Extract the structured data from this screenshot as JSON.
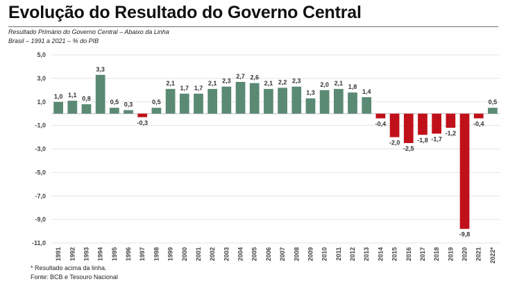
{
  "header": {
    "title": "Evolução do Resultado do Governo Central",
    "subtitle": "Resultado Primário do Governo Central – Abaixo da Linha",
    "subtitle2": "Brasil – 1991 a 2021 – % do PIB"
  },
  "footer": {
    "note": "* Resultado acima da linha.",
    "source": "Fonte: BCB e Tesouro Nacional"
  },
  "chart_data": {
    "type": "bar",
    "title": "Evolução do Resultado do Governo Central",
    "xlabel": "",
    "ylabel": "",
    "ylim": [
      -11.0,
      5.0
    ],
    "yticks": [
      5.0,
      3.0,
      1.0,
      -1.0,
      -3.0,
      -5.0,
      -7.0,
      -9.0,
      -11.0
    ],
    "ytick_labels": [
      "5,0",
      "3,0",
      "1,0",
      "-1,0",
      "-3,0",
      "-5,0",
      "-7,0",
      "-9,0",
      "-11,0"
    ],
    "grid": true,
    "legend": "none",
    "positive_color": "#5b8a74",
    "negative_color": "#c0111a",
    "categories": [
      "1991",
      "1992",
      "1993",
      "1994",
      "1995",
      "1996",
      "1997",
      "1998",
      "1999",
      "2000",
      "2001",
      "2002",
      "2003",
      "2004",
      "2005",
      "2006",
      "2007",
      "2008",
      "2009",
      "2010",
      "2011",
      "2012",
      "2013",
      "2014",
      "2015",
      "2016",
      "2017",
      "2018",
      "2019",
      "2020",
      "2021",
      "2022*"
    ],
    "values": [
      1.0,
      1.1,
      0.8,
      3.3,
      0.5,
      0.3,
      -0.3,
      0.5,
      2.1,
      1.7,
      1.7,
      2.1,
      2.3,
      2.7,
      2.6,
      2.1,
      2.2,
      2.3,
      1.3,
      2.0,
      2.1,
      1.8,
      1.4,
      -0.4,
      -2.0,
      -2.5,
      -1.8,
      -1.7,
      -1.2,
      -9.8,
      -0.4,
      0.5
    ],
    "value_labels": [
      "1,0",
      "1,1",
      "0,8",
      "3,3",
      "0,5",
      "0,3",
      "-0,3",
      "0,5",
      "2,1",
      "1,7",
      "1,7",
      "2,1",
      "2,3",
      "2,7",
      "2,6",
      "2,1",
      "2,2",
      "2,3",
      "1,3",
      "2,0",
      "2,1",
      "1,8",
      "1,4",
      "-0,4",
      "-2,0",
      "-2,5",
      "-1,8",
      "-1,7",
      "-1,2",
      "-9,8",
      "-0,4",
      "0,5"
    ]
  }
}
